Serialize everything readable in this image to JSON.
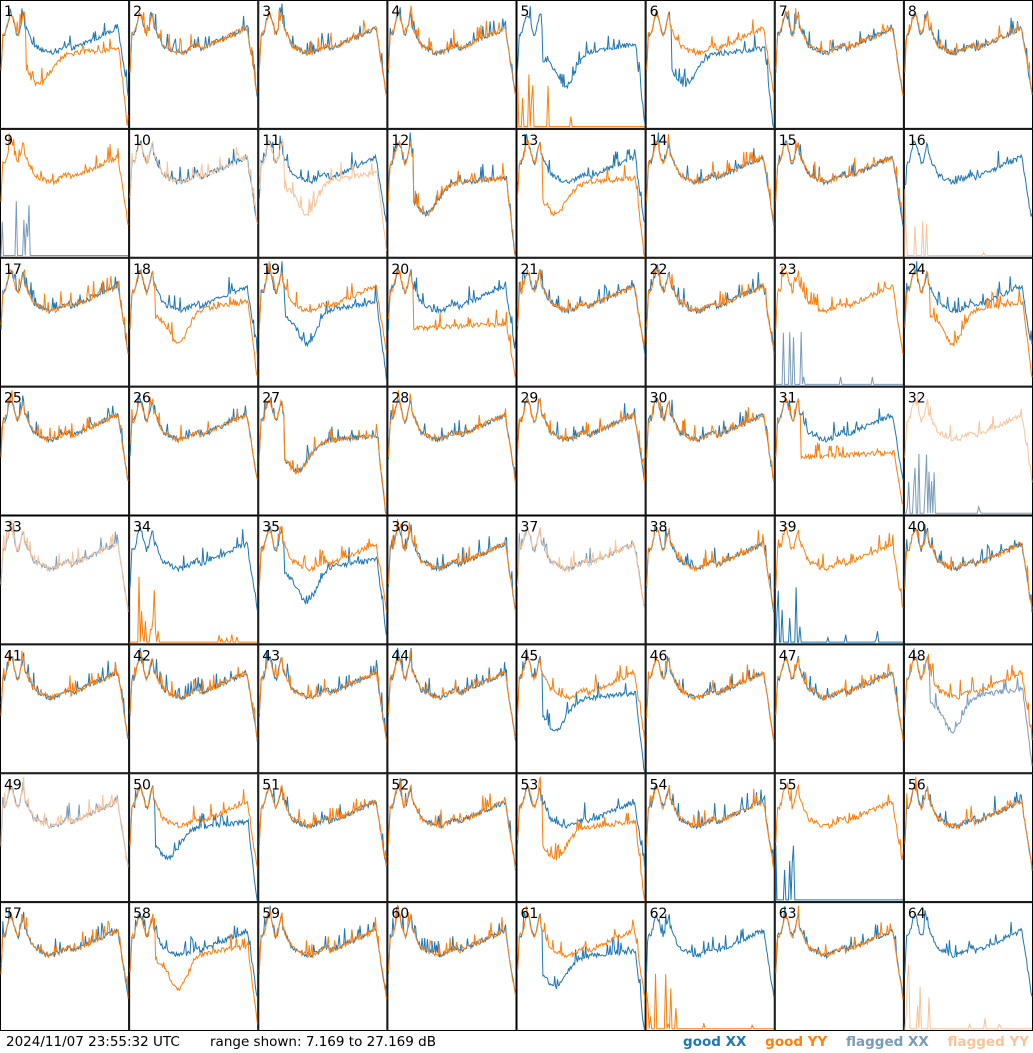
{
  "timestamp": "2024/11/07 23:55:32 UTC",
  "range_text": "range shown: 7.169 to 27.169 dB",
  "legend": [
    {
      "label": "good XX",
      "color": "#1f77b4"
    },
    {
      "label": "good YY",
      "color": "#ff7f0e"
    },
    {
      "label": "flagged XX",
      "color": "#7a9cbc"
    },
    {
      "label": "flagged YY",
      "color": "#f9c49a"
    }
  ],
  "chart_data": {
    "type": "line",
    "title": "",
    "xlabel": "",
    "ylabel": "",
    "ylim": [
      7.169,
      27.169
    ],
    "grid_columns": 8,
    "grid_rows": 8,
    "series": [
      {
        "name": "good XX",
        "color": "#1f77b4"
      },
      {
        "name": "good YY",
        "color": "#ff7f0e"
      },
      {
        "name": "flagged XX",
        "color": "#7a9cbc"
      },
      {
        "name": "flagged YY",
        "color": "#f9c49a"
      }
    ],
    "panels": [
      {
        "label": "1",
        "xx": "normal",
        "yy": "bowl"
      },
      {
        "label": "2",
        "xx": "normal",
        "yy": "normal"
      },
      {
        "label": "3",
        "xx": "normal",
        "yy": "normal"
      },
      {
        "label": "4",
        "xx": "normal",
        "yy": "normal"
      },
      {
        "label": "5",
        "xx": "dip",
        "yy": "spike"
      },
      {
        "label": "6",
        "xx": "bowl",
        "yy": "normal"
      },
      {
        "label": "7",
        "xx": "normal",
        "yy": "normal"
      },
      {
        "label": "8",
        "xx": "normal",
        "yy": "normal"
      },
      {
        "label": "9",
        "xx": "flag_spike",
        "yy": "normal"
      },
      {
        "label": "10",
        "xx": "normal",
        "yy": "flag_normal"
      },
      {
        "label": "11",
        "xx": "normal",
        "yy": "flag_dip"
      },
      {
        "label": "12",
        "xx": "bowl",
        "yy": "bowl"
      },
      {
        "label": "13",
        "xx": "normal",
        "yy": "bowl"
      },
      {
        "label": "14",
        "xx": "normal",
        "yy": "normal"
      },
      {
        "label": "15",
        "xx": "normal",
        "yy": "normal"
      },
      {
        "label": "16",
        "xx": "normal",
        "yy": "flag_spike"
      },
      {
        "label": "17",
        "xx": "normal",
        "yy": "normal"
      },
      {
        "label": "18",
        "xx": "normal",
        "yy": "dip"
      },
      {
        "label": "19",
        "xx": "dip",
        "yy": "normal"
      },
      {
        "label": "20",
        "xx": "normal",
        "yy": "low"
      },
      {
        "label": "21",
        "xx": "normal",
        "yy": "normal"
      },
      {
        "label": "22",
        "xx": "normal",
        "yy": "normal"
      },
      {
        "label": "23",
        "xx": "flag_spike",
        "yy": "normal"
      },
      {
        "label": "24",
        "xx": "normal",
        "yy": "dip"
      },
      {
        "label": "25",
        "xx": "normal",
        "yy": "normal"
      },
      {
        "label": "26",
        "xx": "normal",
        "yy": "normal"
      },
      {
        "label": "27",
        "xx": "bowl",
        "yy": "bowl"
      },
      {
        "label": "28",
        "xx": "normal",
        "yy": "normal"
      },
      {
        "label": "29",
        "xx": "normal",
        "yy": "normal"
      },
      {
        "label": "30",
        "xx": "normal",
        "yy": "normal"
      },
      {
        "label": "31",
        "xx": "normal",
        "yy": "low"
      },
      {
        "label": "32",
        "xx": "flag_spike",
        "yy": "flag_normal"
      },
      {
        "label": "33",
        "xx": "flag_normal",
        "yy": "flag_normal"
      },
      {
        "label": "34",
        "xx": "normal",
        "yy": "spike"
      },
      {
        "label": "35",
        "xx": "dip",
        "yy": "normal"
      },
      {
        "label": "36",
        "xx": "normal",
        "yy": "normal"
      },
      {
        "label": "37",
        "xx": "flag_normal",
        "yy": "flag_normal"
      },
      {
        "label": "38",
        "xx": "normal",
        "yy": "normal"
      },
      {
        "label": "39",
        "xx": "spike",
        "yy": "normal"
      },
      {
        "label": "40",
        "xx": "normal",
        "yy": "normal"
      },
      {
        "label": "41",
        "xx": "normal",
        "yy": "normal"
      },
      {
        "label": "42",
        "xx": "normal",
        "yy": "normal"
      },
      {
        "label": "43",
        "xx": "normal",
        "yy": "normal"
      },
      {
        "label": "44",
        "xx": "normal",
        "yy": "normal"
      },
      {
        "label": "45",
        "xx": "bowl",
        "yy": "normal"
      },
      {
        "label": "46",
        "xx": "normal",
        "yy": "normal"
      },
      {
        "label": "47",
        "xx": "normal",
        "yy": "normal"
      },
      {
        "label": "48",
        "xx": "flag_dip",
        "yy": "normal"
      },
      {
        "label": "49",
        "xx": "flag_normal",
        "yy": "flag_normal"
      },
      {
        "label": "50",
        "xx": "bowl",
        "yy": "normal"
      },
      {
        "label": "51",
        "xx": "normal",
        "yy": "normal"
      },
      {
        "label": "52",
        "xx": "normal",
        "yy": "normal"
      },
      {
        "label": "53",
        "xx": "normal",
        "yy": "bowl"
      },
      {
        "label": "54",
        "xx": "normal",
        "yy": "normal"
      },
      {
        "label": "55",
        "xx": "spike",
        "yy": "normal"
      },
      {
        "label": "56",
        "xx": "normal",
        "yy": "normal"
      },
      {
        "label": "57",
        "xx": "normal",
        "yy": "normal"
      },
      {
        "label": "58",
        "xx": "normal",
        "yy": "dip"
      },
      {
        "label": "59",
        "xx": "normal",
        "yy": "normal"
      },
      {
        "label": "60",
        "xx": "normal",
        "yy": "normal"
      },
      {
        "label": "61",
        "xx": "bowl",
        "yy": "normal"
      },
      {
        "label": "62",
        "xx": "normal",
        "yy": "spike"
      },
      {
        "label": "63",
        "xx": "normal",
        "yy": "normal"
      },
      {
        "label": "64",
        "xx": "normal",
        "yy": "flag_spike"
      }
    ]
  }
}
